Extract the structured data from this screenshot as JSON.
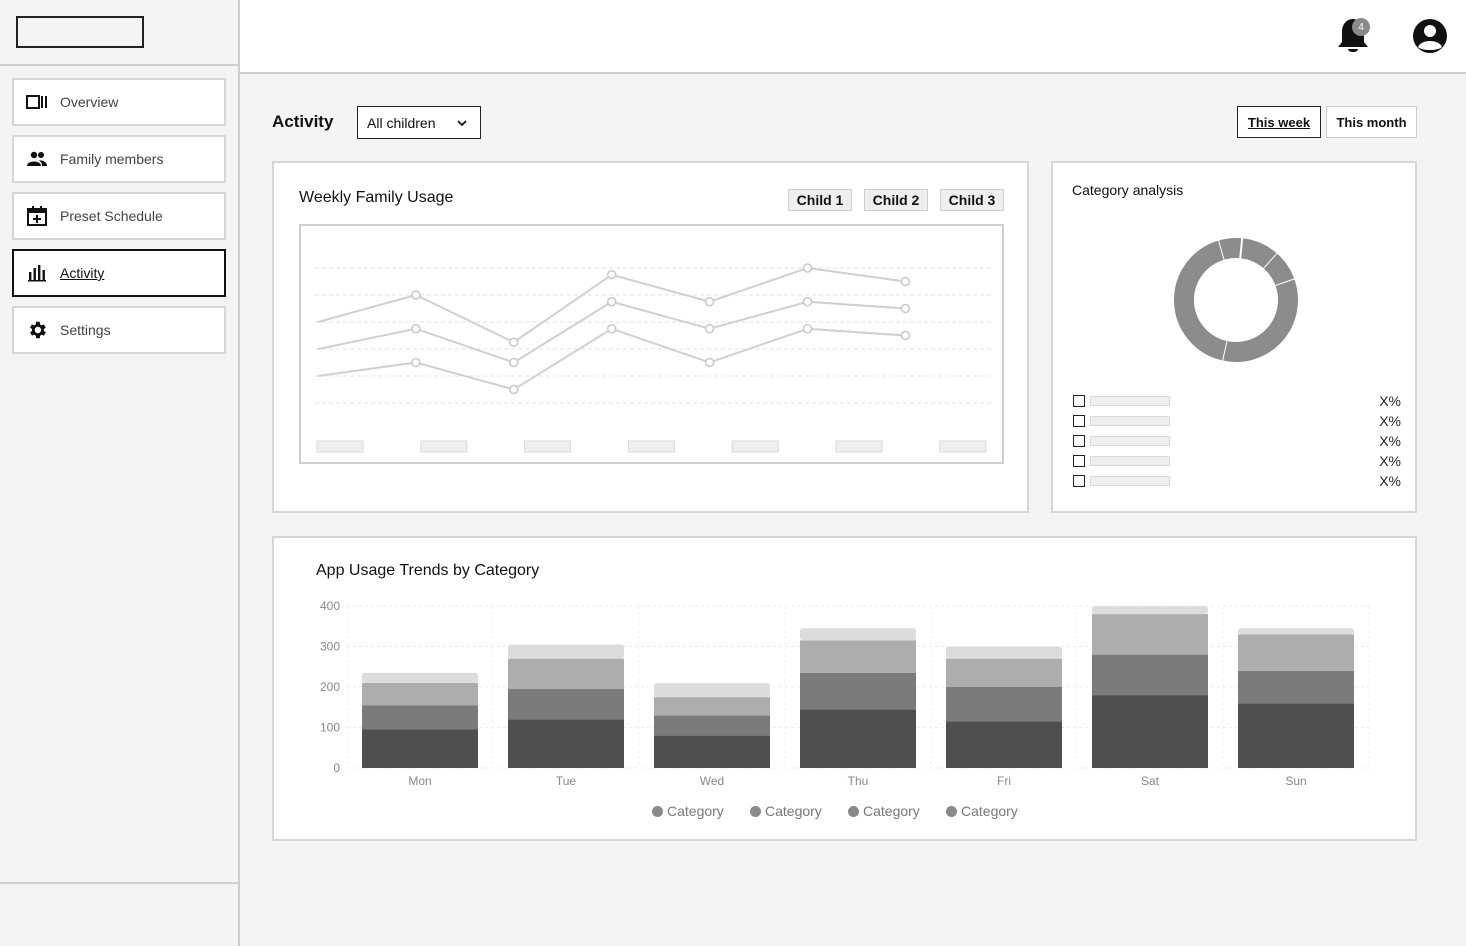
{
  "sidebar": {
    "items": [
      {
        "label": "Overview",
        "icon": "overview-icon"
      },
      {
        "label": "Family members",
        "icon": "people-icon"
      },
      {
        "label": "Preset Schedule",
        "icon": "calendar-add-icon"
      },
      {
        "label": "Activity",
        "icon": "bar-chart-icon",
        "active": true
      },
      {
        "label": "Settings",
        "icon": "gear-icon"
      }
    ]
  },
  "header": {
    "notification_count": "4"
  },
  "toolbar": {
    "title": "Activity",
    "child_select_value": "All children",
    "range_week": "This week",
    "range_month": "This month",
    "active_range": "This week"
  },
  "weekly_card": {
    "title": "Weekly Family Usage",
    "chips": [
      "Child 1",
      "Child 2",
      "Child 3"
    ]
  },
  "category_card": {
    "title": "Category analysis",
    "rows": [
      "X%",
      "X%",
      "X%",
      "X%",
      "X%"
    ]
  },
  "trends_card": {
    "title": "App Usage Trends by Category",
    "legend": [
      "Category",
      "Category",
      "Category",
      "Category"
    ]
  },
  "colors": {
    "dark": "#4f4f4f",
    "mid": "#7b7b7b",
    "light": "#adadad",
    "lightest": "#dcdcdc",
    "line": "#cfcfcf"
  },
  "chart_data": [
    {
      "type": "line",
      "title": "Weekly Family Usage",
      "x": [
        "",
        "",
        "",
        "",
        "",
        "",
        ""
      ],
      "series": [
        {
          "name": "Child 1",
          "values": [
            0.8,
            1.0,
            0.65,
            1.15,
            0.95,
            1.2,
            1.1
          ]
        },
        {
          "name": "Child 2",
          "values": [
            0.6,
            0.75,
            0.5,
            0.95,
            0.75,
            0.95,
            0.9
          ]
        },
        {
          "name": "Child 3",
          "values": [
            0.4,
            0.5,
            0.3,
            0.75,
            0.5,
            0.75,
            0.7
          ]
        }
      ],
      "ylim": [
        0,
        1.4
      ],
      "grid": true
    },
    {
      "type": "pie",
      "title": "Category analysis",
      "values": [
        10,
        8,
        34,
        42,
        6
      ],
      "donut": true
    },
    {
      "type": "bar",
      "stacked": true,
      "title": "App Usage Trends by Category",
      "categories": [
        "Mon",
        "Tue",
        "Wed",
        "Thu",
        "Fri",
        "Sat",
        "Sun"
      ],
      "series": [
        {
          "name": "Category",
          "values": [
            95,
            120,
            80,
            145,
            115,
            180,
            160
          ]
        },
        {
          "name": "Category",
          "values": [
            60,
            75,
            50,
            90,
            85,
            100,
            80
          ]
        },
        {
          "name": "Category",
          "values": [
            55,
            75,
            45,
            80,
            70,
            100,
            90
          ]
        },
        {
          "name": "Category",
          "values": [
            25,
            35,
            35,
            30,
            30,
            20,
            15
          ]
        }
      ],
      "yticks": [
        0,
        100,
        200,
        300,
        400
      ],
      "ylim": [
        0,
        400
      ],
      "grid": true,
      "legend": "bottom"
    }
  ]
}
